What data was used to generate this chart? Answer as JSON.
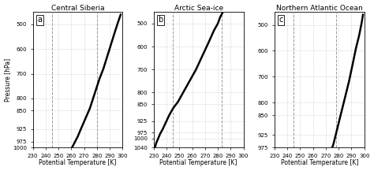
{
  "titles": [
    "Central Siberia",
    "Arctic Sea-ice",
    "Northern Atlantic Ocean"
  ],
  "panel_labels": [
    "a",
    "b",
    "c"
  ],
  "xlabel": "Potential Temperature [K]",
  "ylabel": "Pressure [hPa]",
  "xlim": [
    230,
    300
  ],
  "xticks": [
    230,
    240,
    250,
    260,
    270,
    280,
    290,
    300
  ],
  "dashed_vlines_a": [
    245,
    280
  ],
  "dashed_vlines_b": [
    245,
    283
  ],
  "dashed_vlines_c": [
    245,
    278
  ],
  "panels": [
    {
      "ylim": [
        1000,
        450
      ],
      "yticks": [
        500,
        600,
        700,
        800,
        850,
        925,
        975,
        1000
      ],
      "curve_theta": [
        260.5,
        261.5,
        263,
        265,
        267,
        269.5,
        272,
        274.5,
        277,
        279.5,
        282,
        285,
        288,
        291,
        294,
        296.5,
        298.5
      ],
      "curve_p": [
        1000,
        990,
        975,
        955,
        930,
        900,
        870,
        840,
        800,
        760,
        720,
        680,
        630,
        580,
        530,
        490,
        460
      ]
    },
    {
      "ylim": [
        1040,
        450
      ],
      "yticks": [
        500,
        600,
        700,
        800,
        850,
        925,
        975,
        1000,
        1040
      ],
      "curve_theta": [
        231,
        232,
        233.5,
        235,
        237,
        239.5,
        242,
        245,
        249,
        253,
        258,
        263,
        268,
        273,
        277,
        280,
        282,
        283.5
      ],
      "curve_p": [
        1040,
        1020,
        1000,
        980,
        960,
        930,
        900,
        870,
        840,
        800,
        750,
        700,
        640,
        580,
        530,
        500,
        470,
        455
      ]
    },
    {
      "ylim": [
        975,
        450
      ],
      "yticks": [
        500,
        600,
        700,
        800,
        850,
        925,
        975
      ],
      "curve_theta": [
        275,
        276,
        277,
        278,
        279,
        281,
        283,
        285,
        288,
        291,
        293.5,
        296,
        298,
        299
      ],
      "curve_p": [
        975,
        960,
        940,
        920,
        900,
        860,
        820,
        780,
        720,
        650,
        590,
        540,
        490,
        460
      ]
    }
  ],
  "line_color": "#000000",
  "line_width": 1.8,
  "grid_color": "#bbbbbb",
  "dashed_color": "#999999",
  "bg_color": "#ffffff",
  "title_fontsize": 6.5,
  "label_fontsize": 5.5,
  "tick_fontsize": 5,
  "panel_label_fontsize": 7
}
